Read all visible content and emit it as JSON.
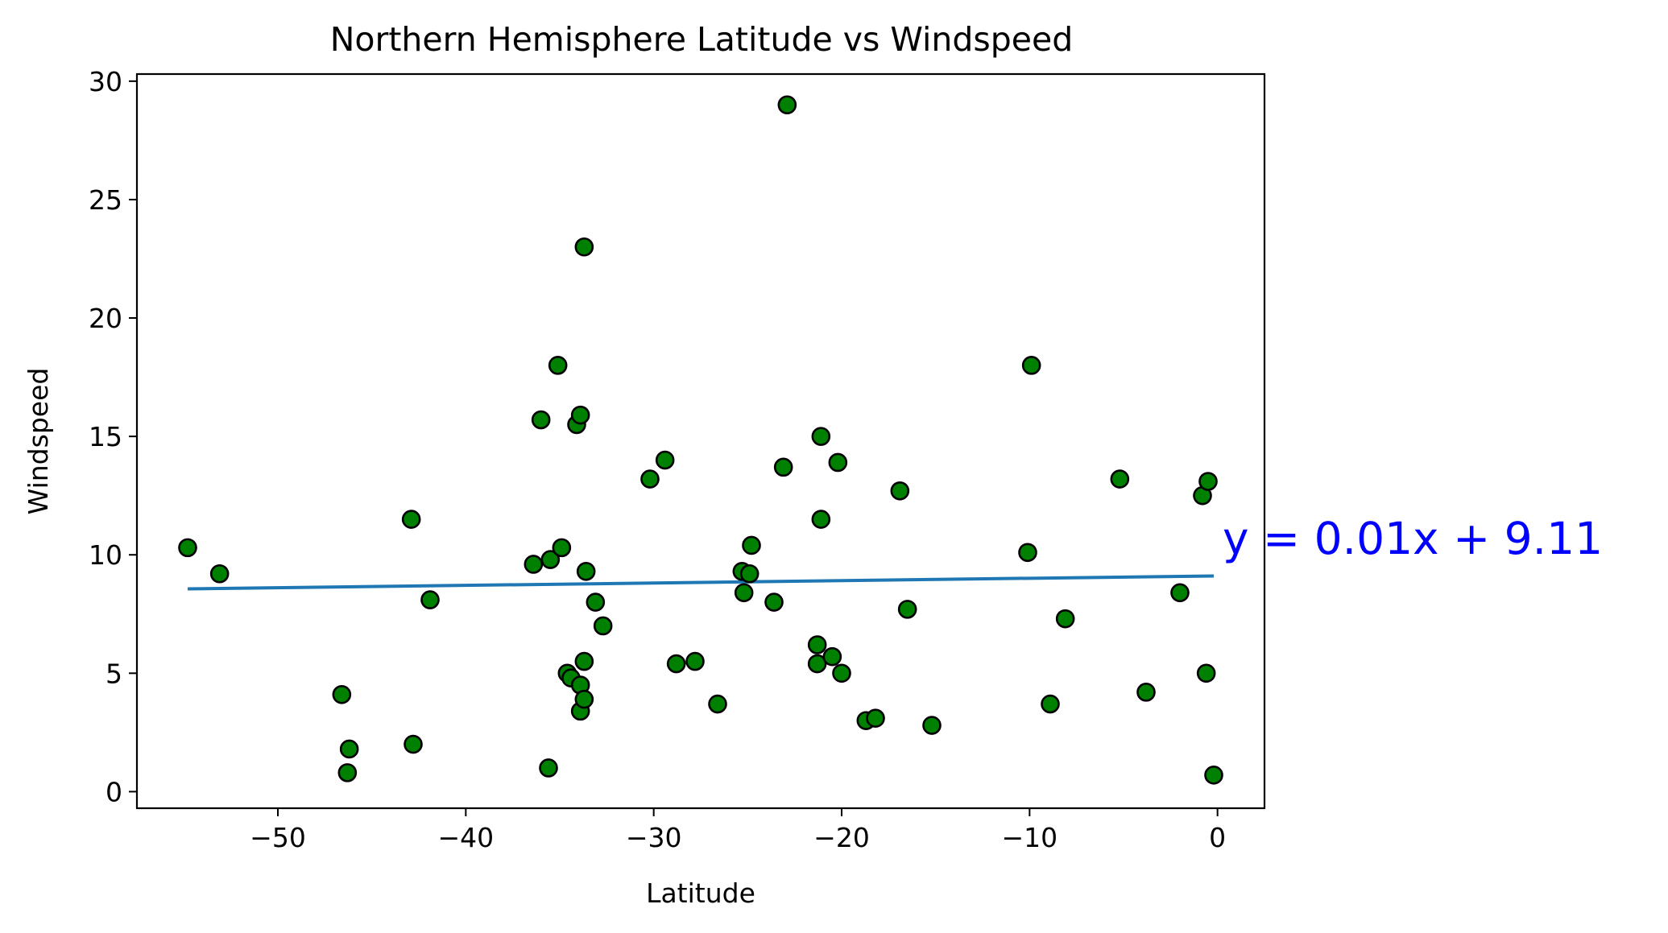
{
  "chart_data": {
    "type": "scatter",
    "title": "Northern Hemisphere Latitude vs Windspeed",
    "xlabel": "Latitude",
    "ylabel": "Windspeed",
    "xlim": [
      -57.5,
      2.5
    ],
    "ylim": [
      -0.7,
      30.3
    ],
    "xticks": [
      -50,
      -40,
      -30,
      -20,
      -10,
      0
    ],
    "xtick_labels": [
      "−50",
      "−40",
      "−30",
      "−20",
      "−10",
      "0"
    ],
    "yticks": [
      0,
      5,
      10,
      15,
      20,
      25,
      30
    ],
    "ytick_labels": [
      "0",
      "5",
      "10",
      "15",
      "20",
      "25",
      "30"
    ],
    "grid": false,
    "colors": {
      "point_fill": "#008000",
      "point_edge": "#000000",
      "regression_line": "#1f77b4",
      "equation": "#0000ff"
    },
    "series": [
      {
        "points": [
          {
            "x": -54.8,
            "y": 10.3
          },
          {
            "x": -53.1,
            "y": 9.2
          },
          {
            "x": -46.6,
            "y": 4.1
          },
          {
            "x": -46.3,
            "y": 0.8
          },
          {
            "x": -46.2,
            "y": 1.8
          },
          {
            "x": -42.9,
            "y": 11.5
          },
          {
            "x": -42.8,
            "y": 2.0
          },
          {
            "x": -41.9,
            "y": 8.1
          },
          {
            "x": -36.4,
            "y": 9.6
          },
          {
            "x": -36.0,
            "y": 15.7
          },
          {
            "x": -35.6,
            "y": 1.0
          },
          {
            "x": -35.5,
            "y": 9.8
          },
          {
            "x": -35.1,
            "y": 18.0
          },
          {
            "x": -34.9,
            "y": 10.3
          },
          {
            "x": -34.6,
            "y": 5.0
          },
          {
            "x": -34.4,
            "y": 4.8
          },
          {
            "x": -34.1,
            "y": 15.5
          },
          {
            "x": -33.9,
            "y": 15.9
          },
          {
            "x": -33.9,
            "y": 4.5
          },
          {
            "x": -33.9,
            "y": 3.4
          },
          {
            "x": -33.7,
            "y": 23.0
          },
          {
            "x": -33.7,
            "y": 5.5
          },
          {
            "x": -33.7,
            "y": 3.9
          },
          {
            "x": -33.6,
            "y": 9.3
          },
          {
            "x": -33.1,
            "y": 8.0
          },
          {
            "x": -32.7,
            "y": 7.0
          },
          {
            "x": -30.2,
            "y": 13.2
          },
          {
            "x": -29.4,
            "y": 14.0
          },
          {
            "x": -28.8,
            "y": 5.4
          },
          {
            "x": -27.8,
            "y": 5.5
          },
          {
            "x": -26.6,
            "y": 3.7
          },
          {
            "x": -25.3,
            "y": 9.3
          },
          {
            "x": -25.2,
            "y": 8.4
          },
          {
            "x": -24.9,
            "y": 9.2
          },
          {
            "x": -24.8,
            "y": 10.4
          },
          {
            "x": -23.6,
            "y": 8.0
          },
          {
            "x": -23.1,
            "y": 13.7
          },
          {
            "x": -22.9,
            "y": 29.0
          },
          {
            "x": -21.3,
            "y": 6.2
          },
          {
            "x": -21.3,
            "y": 5.4
          },
          {
            "x": -21.1,
            "y": 15.0
          },
          {
            "x": -21.1,
            "y": 11.5
          },
          {
            "x": -20.5,
            "y": 5.7
          },
          {
            "x": -20.2,
            "y": 13.9
          },
          {
            "x": -20.0,
            "y": 5.0
          },
          {
            "x": -18.7,
            "y": 3.0
          },
          {
            "x": -18.2,
            "y": 3.1
          },
          {
            "x": -16.9,
            "y": 12.7
          },
          {
            "x": -16.5,
            "y": 7.7
          },
          {
            "x": -15.2,
            "y": 2.8
          },
          {
            "x": -10.1,
            "y": 10.1
          },
          {
            "x": -9.9,
            "y": 18.0
          },
          {
            "x": -8.9,
            "y": 3.7
          },
          {
            "x": -8.1,
            "y": 7.3
          },
          {
            "x": -5.2,
            "y": 13.2
          },
          {
            "x": -3.8,
            "y": 4.2
          },
          {
            "x": -2.0,
            "y": 8.4
          },
          {
            "x": -0.8,
            "y": 12.5
          },
          {
            "x": -0.6,
            "y": 5.0
          },
          {
            "x": -0.5,
            "y": 13.1
          },
          {
            "x": -0.2,
            "y": 0.7
          }
        ]
      }
    ],
    "regression": {
      "slope": 0.01,
      "intercept": 9.11,
      "x_range": [
        -54.8,
        -0.2
      ],
      "equation": "y = 0.01x + 9.11"
    }
  }
}
